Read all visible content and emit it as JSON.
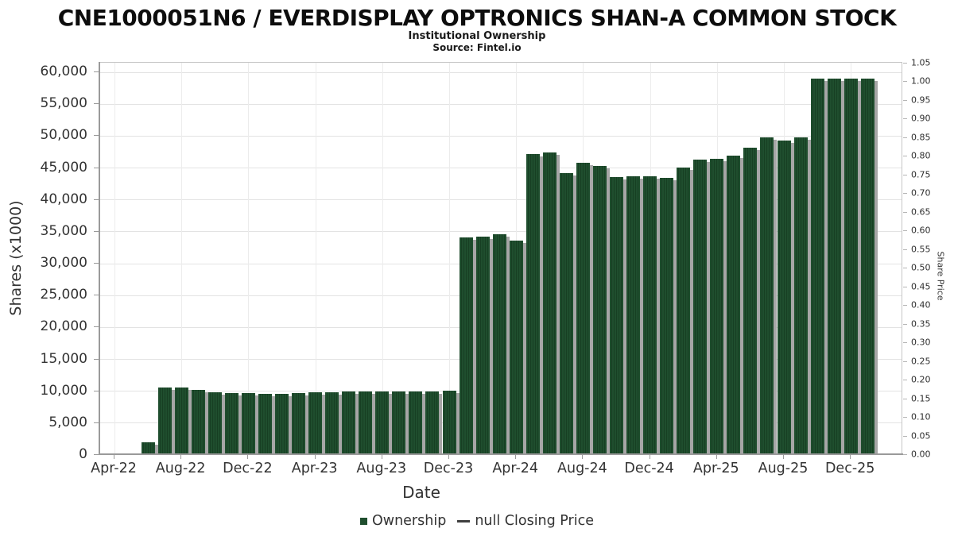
{
  "header": {
    "title": "CNE1000051N6 / EVERDISPLAY OPTRONICS SHAN-A COMMON STOCK",
    "subtitle": "Institutional Ownership",
    "source": "Source: Fintel.io"
  },
  "chart_data": {
    "type": "bar",
    "title": "CNE1000051N6 / EVERDISPLAY OPTRONICS SHAN-A COMMON STOCK",
    "subtitle": "Institutional Ownership",
    "source": "Source: Fintel.io",
    "xlabel": "Date",
    "ylabel": "Shares (x1000)",
    "ylabel_right": "Share Price",
    "grid": true,
    "legend_position": "bottom",
    "bar_color": "#1f4e2e",
    "bar_shadow_color": "#a6a6a6",
    "x_tick_labels": [
      "Apr-22",
      "Aug-22",
      "Dec-22",
      "Apr-23",
      "Aug-23",
      "Dec-23",
      "Apr-24",
      "Aug-24",
      "Dec-24",
      "Apr-25",
      "Aug-25",
      "Dec-25"
    ],
    "yaxis_left": {
      "min": 0,
      "max": 60000,
      "step": 5000
    },
    "yaxis_right": {
      "min": 0.0,
      "max": 1.05,
      "step": 0.05
    },
    "categories": [
      "Jun-22",
      "Jul-22",
      "Aug-22",
      "Sep-22",
      "Oct-22",
      "Nov-22",
      "Dec-22",
      "Jan-23",
      "Feb-23",
      "Mar-23",
      "Apr-23",
      "May-23",
      "Jun-23",
      "Jul-23",
      "Aug-23",
      "Sep-23",
      "Oct-23",
      "Nov-23",
      "Dec-23",
      "Jan-24",
      "Feb-24",
      "Mar-24",
      "Apr-24",
      "May-24",
      "Jun-24",
      "Jul-24",
      "Aug-24",
      "Sep-24",
      "Oct-24",
      "Nov-24",
      "Dec-24",
      "Jan-25",
      "Feb-25",
      "Mar-25",
      "Apr-25",
      "May-25",
      "Jun-25",
      "Jul-25",
      "Aug-25",
      "Sep-25",
      "Oct-25",
      "Nov-25",
      "Dec-25",
      "Jan-26"
    ],
    "series": [
      {
        "name": "Ownership",
        "type": "bar",
        "values": [
          1700,
          10300,
          10300,
          9950,
          9550,
          9500,
          9400,
          9350,
          9350,
          9450,
          9550,
          9600,
          9650,
          9700,
          9700,
          9700,
          9750,
          9750,
          9800,
          33900,
          34000,
          34300,
          33400,
          46900,
          47200,
          44000,
          45500,
          45100,
          43300,
          43500,
          43400,
          43200,
          44800,
          46100,
          46200,
          46700,
          47900,
          49500,
          49000,
          49500,
          58700,
          58800,
          58800,
          58700
        ]
      },
      {
        "name": "null Closing Price",
        "type": "line",
        "values": []
      }
    ],
    "legend": {
      "items": [
        {
          "label": "Ownership",
          "marker": "square"
        },
        {
          "label": "null Closing Price",
          "marker": "dash"
        }
      ]
    }
  }
}
